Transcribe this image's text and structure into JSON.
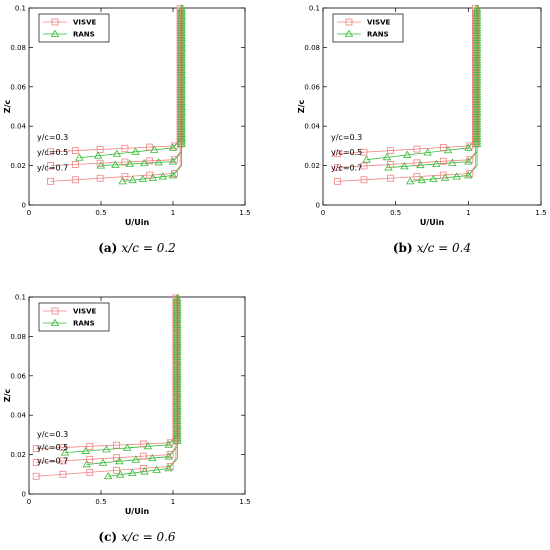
{
  "chart_data": [
    {
      "type": "line",
      "caption": {
        "label": "(a)",
        "text": "x/c = 0.2"
      },
      "xlabel": "U/Uin",
      "ylabel": "Z/c",
      "xlim": [
        0,
        1.5
      ],
      "ylim": [
        0,
        0.1
      ],
      "xticks": [
        "0",
        "0.5",
        "1",
        "1.5"
      ],
      "yticks": [
        "0",
        "0.02",
        "0.04",
        "0.06",
        "0.08",
        "0.1"
      ],
      "legend": {
        "placement": "top-left",
        "entries": [
          "VISVE",
          "RANS"
        ]
      },
      "colors": {
        "VISVE": "#f08080",
        "RANS": "#33bb33"
      },
      "annotations": [
        "y/c=0.3",
        "y/c=0.5",
        "y/c=0.7"
      ],
      "profiles": [
        {
          "label": "y/c=0.3",
          "visve_start": [
            0.15,
            0.027
          ],
          "rans_start": [
            0.35,
            0.024
          ],
          "z_bend": 0.031
        },
        {
          "label": "y/c=0.5",
          "visve_start": [
            0.15,
            0.02
          ],
          "rans_start": [
            0.5,
            0.02
          ],
          "z_bend": 0.024
        },
        {
          "label": "y/c=0.7",
          "visve_start": [
            0.15,
            0.012
          ],
          "rans_start": [
            0.65,
            0.012
          ],
          "z_bend": 0.017
        }
      ],
      "u_edge": 1.05
    },
    {
      "type": "line",
      "caption": {
        "label": "(b)",
        "text": "x/c = 0.4"
      },
      "xlabel": "U/Uin",
      "ylabel": "Z/c",
      "xlim": [
        0,
        1.5
      ],
      "ylim": [
        0,
        0.1
      ],
      "xticks": [
        "0",
        "0.5",
        "1",
        "1.5"
      ],
      "yticks": [
        "0",
        "0.02",
        "0.04",
        "0.06",
        "0.08",
        "0.1"
      ],
      "legend": {
        "placement": "top-left",
        "entries": [
          "VISVE",
          "RANS"
        ]
      },
      "colors": {
        "VISVE": "#f08080",
        "RANS": "#33bb33"
      },
      "annotations": [
        "y/c=0.3",
        "y/c=0.5",
        "y/c=0.7"
      ],
      "profiles": [
        {
          "label": "y/c=0.3",
          "visve_start": [
            0.1,
            0.026
          ],
          "rans_start": [
            0.3,
            0.023
          ],
          "z_bend": 0.031
        },
        {
          "label": "y/c=0.5",
          "visve_start": [
            0.1,
            0.019
          ],
          "rans_start": [
            0.45,
            0.019
          ],
          "z_bend": 0.024
        },
        {
          "label": "y/c=0.7",
          "visve_start": [
            0.1,
            0.012
          ],
          "rans_start": [
            0.6,
            0.012
          ],
          "z_bend": 0.017
        }
      ],
      "u_edge": 1.05
    },
    {
      "type": "line",
      "caption": {
        "label": "(c)",
        "text": "x/c = 0.6"
      },
      "xlabel": "U/Uin",
      "ylabel": "Z/c",
      "xlim": [
        0,
        1.5
      ],
      "ylim": [
        0,
        0.1
      ],
      "xticks": [
        "0",
        "0.5",
        "1",
        "1.5"
      ],
      "yticks": [
        "0",
        "0.02",
        "0.04",
        "0.06",
        "0.08",
        "0.1"
      ],
      "legend": {
        "placement": "top-left",
        "entries": [
          "VISVE",
          "RANS"
        ]
      },
      "colors": {
        "VISVE": "#f08080",
        "RANS": "#33bb33"
      },
      "annotations": [
        "y/c=0.3",
        "y/c=0.5",
        "y/c=0.7"
      ],
      "profiles": [
        {
          "label": "y/c=0.3",
          "visve_start": [
            0.05,
            0.023
          ],
          "rans_start": [
            0.25,
            0.021
          ],
          "z_bend": 0.027
        },
        {
          "label": "y/c=0.5",
          "visve_start": [
            0.05,
            0.016
          ],
          "rans_start": [
            0.4,
            0.015
          ],
          "z_bend": 0.021
        },
        {
          "label": "y/c=0.7",
          "visve_start": [
            0.05,
            0.009
          ],
          "rans_start": [
            0.55,
            0.009
          ],
          "z_bend": 0.015
        }
      ],
      "u_edge": 1.02
    }
  ]
}
